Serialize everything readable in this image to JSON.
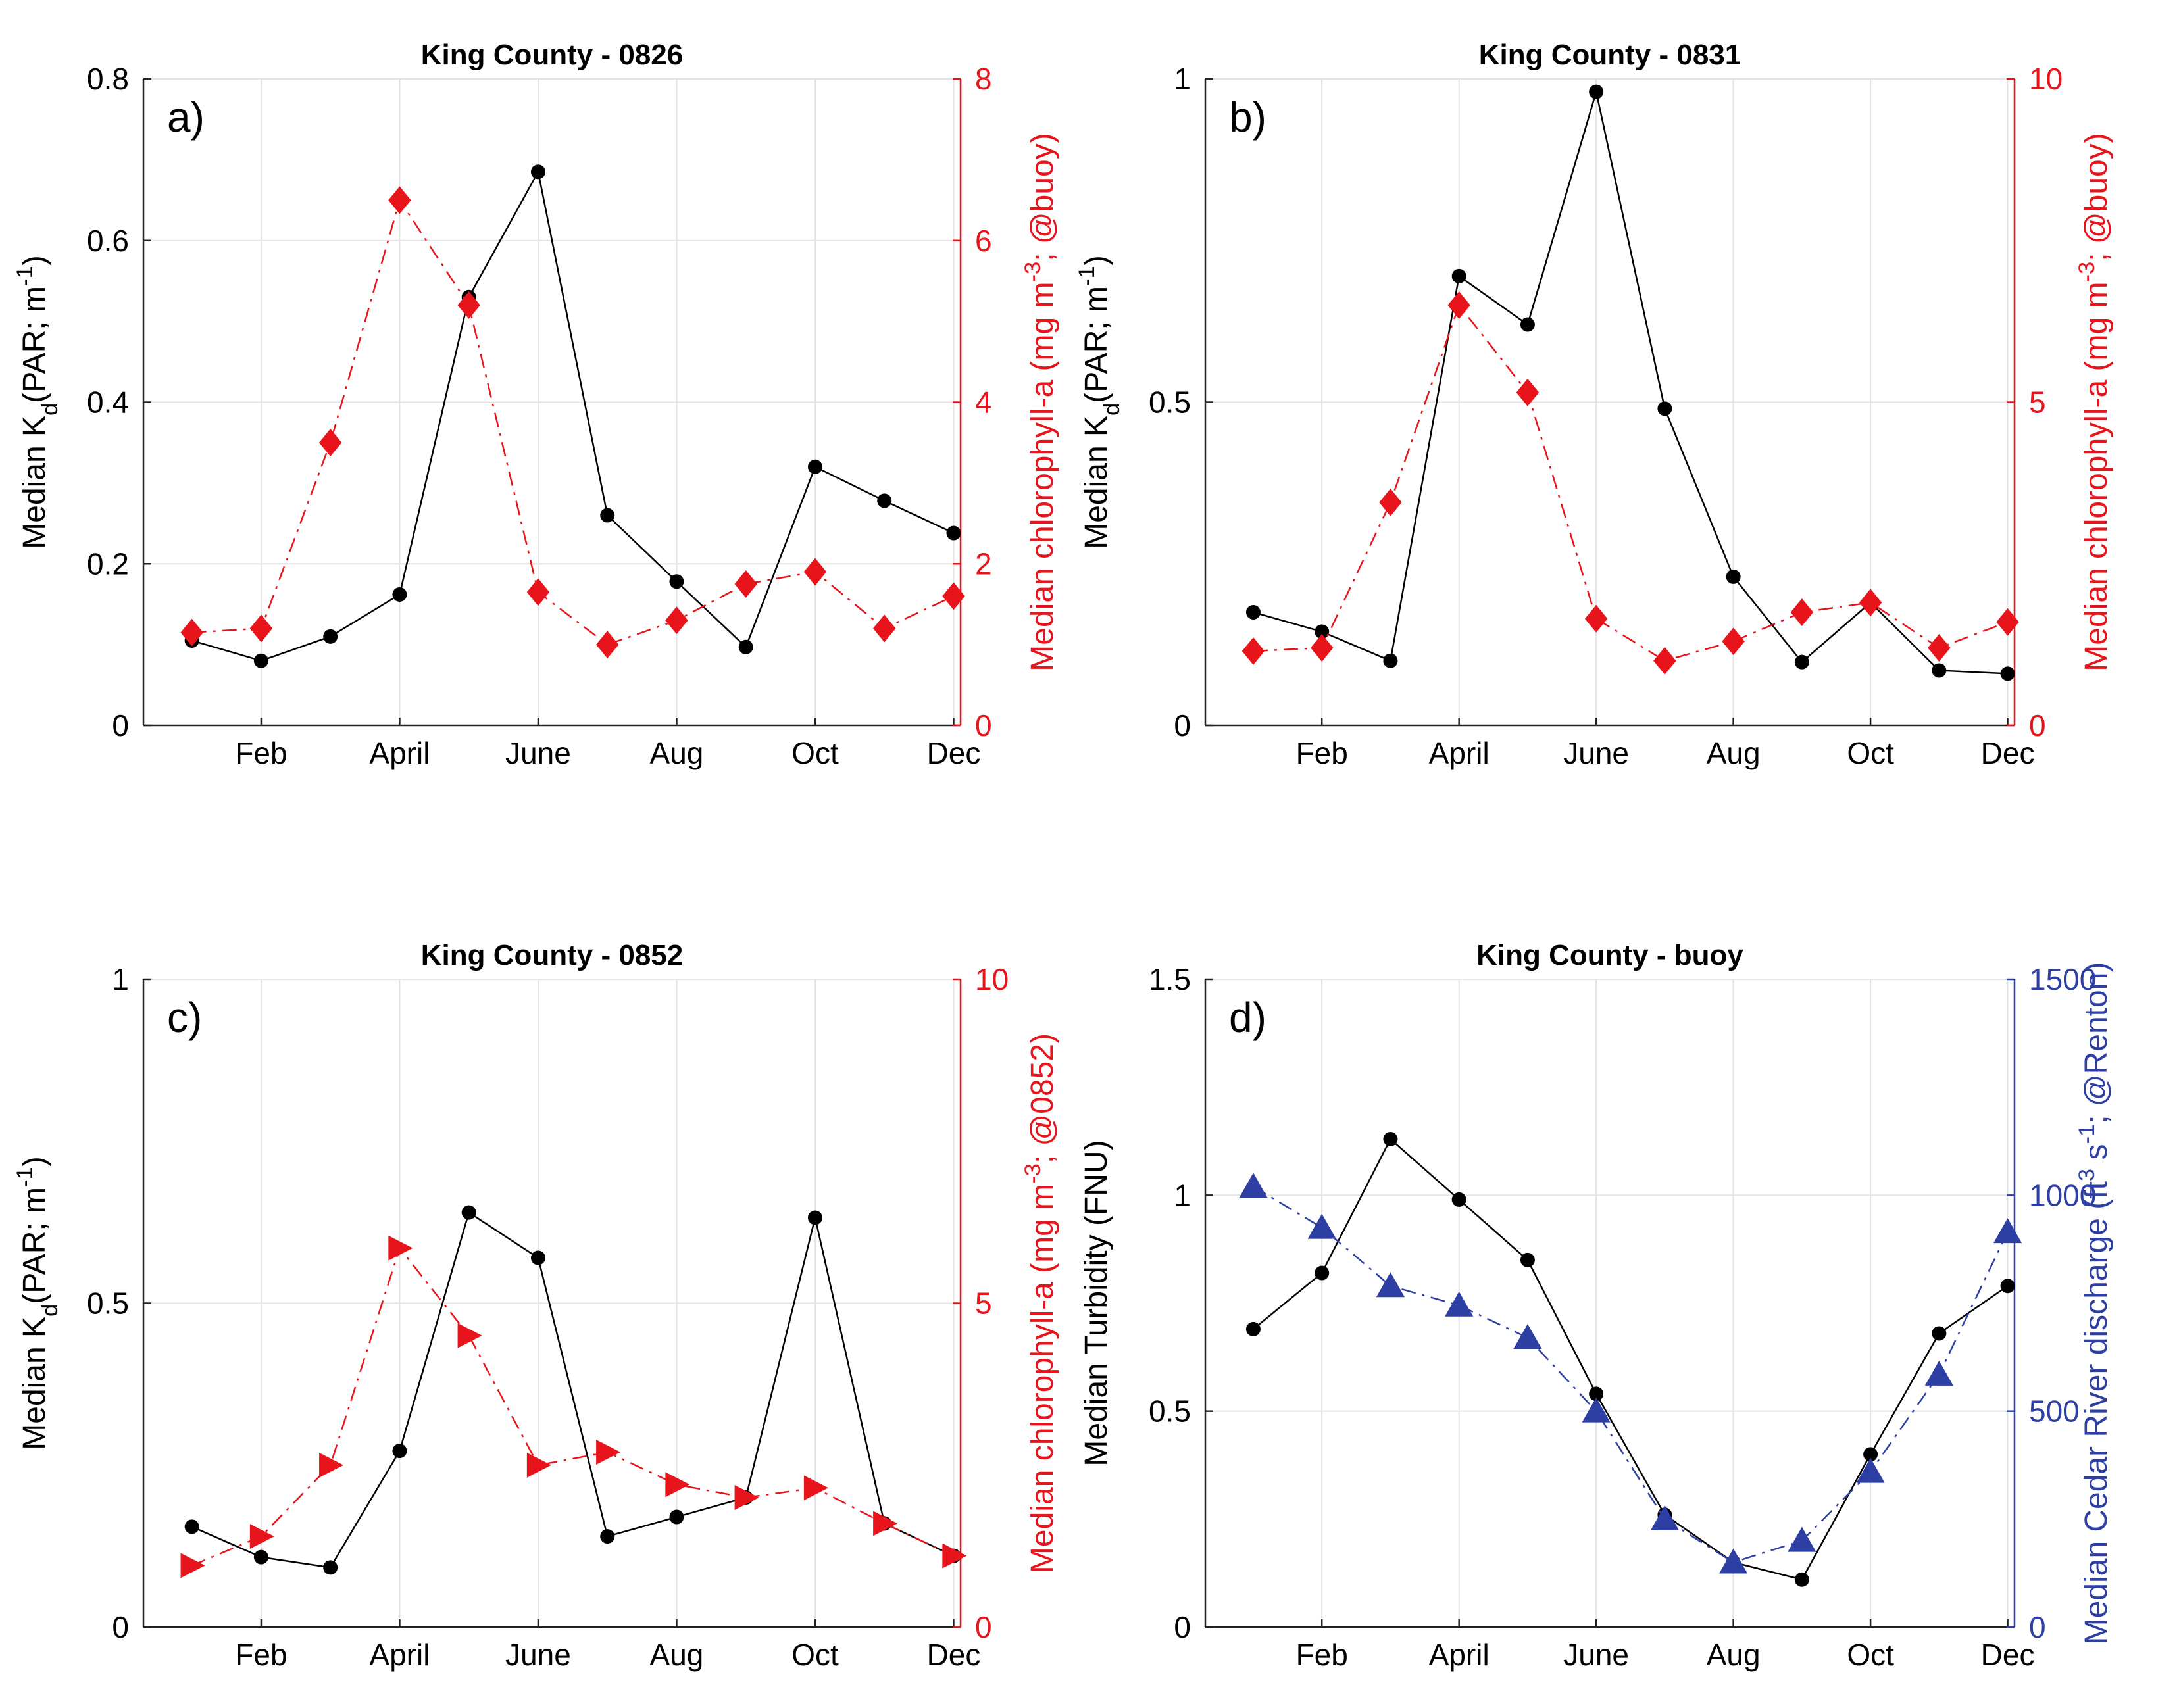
{
  "chart_data": [
    {
      "id": "a",
      "type": "line",
      "title": "King County - 0826",
      "panel_label": "a)",
      "x": [
        1,
        2,
        3,
        4,
        5,
        6,
        7,
        8,
        9,
        10,
        11,
        12
      ],
      "x_ticks": [
        {
          "x": 2,
          "label": "Feb"
        },
        {
          "x": 4,
          "label": "April"
        },
        {
          "x": 6,
          "label": "June"
        },
        {
          "x": 8,
          "label": "Aug"
        },
        {
          "x": 10,
          "label": "Oct"
        },
        {
          "x": 12,
          "label": "Dec"
        }
      ],
      "xlim": [
        0.3,
        12.1
      ],
      "left_axis": {
        "label": "Median K_d(PAR; m^-1)",
        "color": "#000000",
        "ylim": [
          0,
          0.8
        ],
        "ticks": [
          0,
          0.2,
          0.4,
          0.6,
          0.8
        ],
        "tick_labels": [
          "0",
          "0.2",
          "0.4",
          "0.6",
          "0.8"
        ]
      },
      "right_axis": {
        "label": "Median chlorophyll-a (mg m^-3; @buoy)",
        "color": "#e8141c",
        "ylim": [
          0,
          8
        ],
        "ticks": [
          0,
          2,
          4,
          6,
          8
        ],
        "tick_labels": [
          "0",
          "2",
          "4",
          "6",
          "8"
        ]
      },
      "series": [
        {
          "name": "Kd",
          "axis": "left",
          "color": "#000000",
          "marker": "circle",
          "linestyle": "solid",
          "values": [
            0.105,
            0.08,
            0.11,
            0.162,
            0.53,
            0.685,
            0.26,
            0.178,
            0.097,
            0.32,
            0.278,
            0.238
          ]
        },
        {
          "name": "Chlorophyll-a",
          "axis": "right",
          "color": "#e8141c",
          "marker": "diamond",
          "linestyle": "dashdot",
          "values": [
            1.15,
            1.2,
            3.5,
            6.5,
            5.2,
            1.65,
            1.0,
            1.3,
            1.75,
            1.9,
            1.2,
            1.6
          ]
        }
      ]
    },
    {
      "id": "b",
      "type": "line",
      "title": "King County - 0831",
      "panel_label": "b)",
      "x": [
        1,
        2,
        3,
        4,
        5,
        6,
        7,
        8,
        9,
        10,
        11,
        12
      ],
      "x_ticks": [
        {
          "x": 2,
          "label": "Feb"
        },
        {
          "x": 4,
          "label": "April"
        },
        {
          "x": 6,
          "label": "June"
        },
        {
          "x": 8,
          "label": "Aug"
        },
        {
          "x": 10,
          "label": "Oct"
        },
        {
          "x": 12,
          "label": "Dec"
        }
      ],
      "xlim": [
        0.3,
        12.1
      ],
      "left_axis": {
        "label": "Median K_d(PAR; m^-1)",
        "color": "#000000",
        "ylim": [
          0,
          1
        ],
        "ticks": [
          0,
          0.5,
          1
        ],
        "tick_labels": [
          "0",
          "0.5",
          "1"
        ]
      },
      "right_axis": {
        "label": "Median chlorophyll-a (mg m^-3; @buoy)",
        "color": "#e8141c",
        "ylim": [
          0,
          10
        ],
        "ticks": [
          0,
          5,
          10
        ],
        "tick_labels": [
          "0",
          "5",
          "10"
        ]
      },
      "series": [
        {
          "name": "Kd",
          "axis": "left",
          "color": "#000000",
          "marker": "circle",
          "linestyle": "solid",
          "values": [
            0.175,
            0.145,
            0.1,
            0.695,
            0.62,
            0.98,
            0.49,
            0.23,
            0.098,
            0.19,
            0.085,
            0.08
          ]
        },
        {
          "name": "Chlorophyll-a",
          "axis": "right",
          "color": "#e8141c",
          "marker": "diamond",
          "linestyle": "dashdot",
          "values": [
            1.15,
            1.2,
            3.45,
            6.5,
            5.15,
            1.65,
            1.0,
            1.3,
            1.75,
            1.9,
            1.2,
            1.6
          ]
        }
      ]
    },
    {
      "id": "c",
      "type": "line",
      "title": "King County - 0852",
      "panel_label": "c)",
      "x": [
        1,
        2,
        3,
        4,
        5,
        6,
        7,
        8,
        9,
        10,
        11,
        12
      ],
      "x_ticks": [
        {
          "x": 2,
          "label": "Feb"
        },
        {
          "x": 4,
          "label": "April"
        },
        {
          "x": 6,
          "label": "June"
        },
        {
          "x": 8,
          "label": "Aug"
        },
        {
          "x": 10,
          "label": "Oct"
        },
        {
          "x": 12,
          "label": "Dec"
        }
      ],
      "xlim": [
        0.3,
        12.1
      ],
      "left_axis": {
        "label": "Median K_d(PAR; m^-1)",
        "color": "#000000",
        "ylim": [
          0,
          1
        ],
        "ticks": [
          0,
          0.5,
          1
        ],
        "tick_labels": [
          "0",
          "0.5",
          "1"
        ]
      },
      "right_axis": {
        "label": "Median chlorophyll-a (mg m^-3; @0852)",
        "color": "#e8141c",
        "ylim": [
          0,
          10
        ],
        "ticks": [
          0,
          5,
          10
        ],
        "tick_labels": [
          "0",
          "5",
          "10"
        ]
      },
      "series": [
        {
          "name": "Kd",
          "axis": "left",
          "color": "#000000",
          "marker": "circle",
          "linestyle": "solid",
          "values": [
            0.155,
            0.108,
            0.092,
            0.272,
            0.64,
            0.57,
            0.14,
            0.17,
            0.2,
            0.632,
            0.16,
            0.11
          ]
        },
        {
          "name": "Chlorophyll-a",
          "axis": "right",
          "color": "#e8141c",
          "marker": "triangle-right",
          "linestyle": "dashdot",
          "values": [
            0.95,
            1.4,
            2.5,
            5.85,
            4.5,
            2.5,
            2.7,
            2.2,
            2.0,
            2.15,
            1.6,
            1.1
          ]
        }
      ]
    },
    {
      "id": "d",
      "type": "line",
      "title": "King County - buoy",
      "panel_label": "d)",
      "x": [
        1,
        2,
        3,
        4,
        5,
        6,
        7,
        8,
        9,
        10,
        11,
        12
      ],
      "x_ticks": [
        {
          "x": 2,
          "label": "Feb"
        },
        {
          "x": 4,
          "label": "April"
        },
        {
          "x": 6,
          "label": "June"
        },
        {
          "x": 8,
          "label": "Aug"
        },
        {
          "x": 10,
          "label": "Oct"
        },
        {
          "x": 12,
          "label": "Dec"
        }
      ],
      "xlim": [
        0.3,
        12.1
      ],
      "left_axis": {
        "label": "Median Turbidity (FNU)",
        "color": "#000000",
        "ylim": [
          0,
          1.5
        ],
        "ticks": [
          0,
          0.5,
          1,
          1.5
        ],
        "tick_labels": [
          "0",
          "0.5",
          "1",
          "1.5"
        ]
      },
      "right_axis": {
        "label": "Median Cedar River discharge (ft^3 s^-1; @Renton)",
        "color": "#2e3fa3",
        "ylim": [
          0,
          1500
        ],
        "ticks": [
          0,
          500,
          1000,
          1500
        ],
        "tick_labels": [
          "0",
          "500",
          "1000",
          "1500"
        ]
      },
      "series": [
        {
          "name": "Turbidity",
          "axis": "left",
          "color": "#000000",
          "marker": "circle",
          "linestyle": "solid",
          "values": [
            0.69,
            0.82,
            1.13,
            0.99,
            0.85,
            0.54,
            0.26,
            0.15,
            0.11,
            0.4,
            0.68,
            0.79
          ]
        },
        {
          "name": "Cedar River discharge",
          "axis": "right",
          "color": "#2e3fa3",
          "marker": "triangle-up",
          "linestyle": "dashdot",
          "values": [
            1020,
            925,
            790,
            745,
            670,
            500,
            250,
            150,
            200,
            360,
            585,
            915
          ]
        }
      ]
    }
  ]
}
